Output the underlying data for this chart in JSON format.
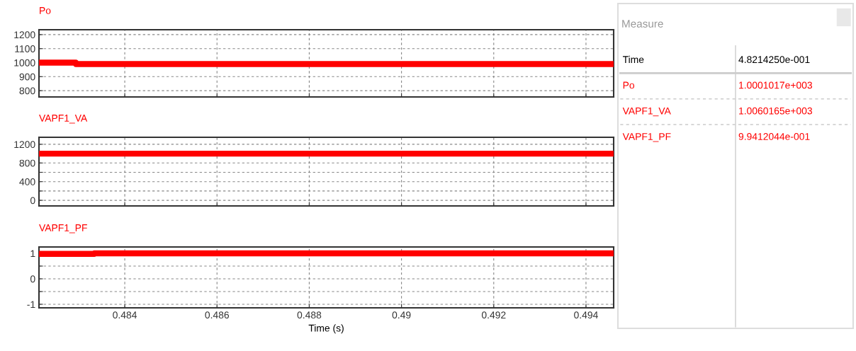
{
  "chart_data": [
    {
      "type": "line",
      "tick_labels": "y",
      "xlim": [
        0.48214,
        0.4946
      ],
      "xticks": [
        0.484,
        0.486,
        0.488,
        0.49,
        0.492,
        0.494
      ],
      "ylim": [
        755,
        1235
      ],
      "yticks": [
        800,
        900,
        1000,
        1100,
        1200
      ],
      "grid": true,
      "legend": false,
      "line_style": "solid",
      "series": [
        {
          "name": "Po",
          "color": "#ff0000",
          "x": [
            0.48214,
            0.48294,
            0.48294,
            0.4946
          ],
          "values": [
            1000,
            1000,
            990,
            990
          ]
        }
      ]
    },
    {
      "type": "line",
      "tick_labels": "y",
      "xlim": [
        0.48214,
        0.4946
      ],
      "xticks": [
        0.484,
        0.486,
        0.488,
        0.49,
        0.492,
        0.494
      ],
      "ylim": [
        -120,
        1350
      ],
      "yticks": [
        0,
        {
          "value": 200,
          "label": null
        },
        400,
        {
          "value": 600,
          "label": null
        },
        800,
        {
          "value": 1000,
          "label": null
        },
        1200
      ],
      "grid": true,
      "legend": false,
      "line_style": "solid",
      "series": [
        {
          "name": "VAPF1_VA",
          "color": "#ff0000",
          "x": [
            0.48214,
            0.4946
          ],
          "values": [
            1000,
            1000
          ]
        }
      ]
    },
    {
      "type": "line",
      "xlabel": "Time (s)",
      "xlim": [
        0.48214,
        0.4946
      ],
      "xticks": [
        0.484,
        0.486,
        0.488,
        0.49,
        0.492,
        0.494
      ],
      "ylim": [
        -1.14,
        1.25
      ],
      "yticks": [
        -1,
        {
          "value": -0.5,
          "label": null
        },
        0,
        {
          "value": 0.5,
          "label": null
        },
        1
      ],
      "grid": true,
      "legend": false,
      "line_style": "solid",
      "series": [
        {
          "name": "VAPF1_PF",
          "color": "#ff0000",
          "x": [
            0.48214,
            0.48334,
            0.48334,
            0.4946
          ],
          "values": [
            0.98,
            0.98,
            1,
            1
          ]
        }
      ]
    },
    {
      "type": "other",
      "title": "Measure",
      "annotations": [
        "Time",
        "4.8214250e-001",
        "Po",
        "1.0001017e+003",
        "VAPF1_VA",
        "1.0060165e+003",
        "VAPF1_PF",
        "9.9412044e-001"
      ]
    }
  ]
}
